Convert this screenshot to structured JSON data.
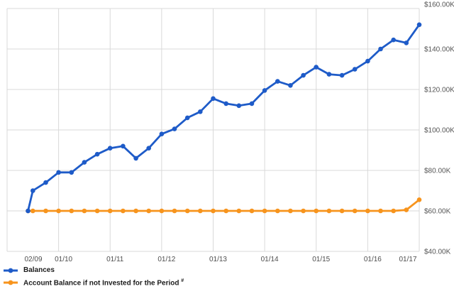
{
  "chart_data": {
    "type": "line",
    "title": "",
    "x": [
      "02/09",
      "07/09",
      "10/09",
      "01/10",
      "04/10",
      "07/10",
      "10/10",
      "01/11",
      "04/11",
      "07/11",
      "10/11",
      "01/12",
      "04/12",
      "07/12",
      "10/12",
      "01/13",
      "04/13",
      "07/13",
      "10/13",
      "01/14",
      "04/14",
      "07/14",
      "10/14",
      "01/15",
      "04/15",
      "07/15",
      "10/15",
      "01/16",
      "04/16",
      "07/16",
      "10/16",
      "01/17"
    ],
    "series": [
      {
        "name": "Balances",
        "color": "#1e5bc8",
        "values": [
          60,
          70,
          74,
          79,
          79,
          84,
          88,
          91,
          92,
          86,
          91,
          98,
          100.5,
          106,
          109,
          115.5,
          113,
          112,
          113,
          119.5,
          124,
          122,
          127,
          131,
          127.5,
          127,
          130,
          134,
          140,
          144.5,
          143,
          152
        ]
      },
      {
        "name": "Account Balance if not Invested for the Period",
        "color": "#f7941d",
        "values": [
          60,
          60,
          60,
          60,
          60,
          60,
          60,
          60,
          60,
          60,
          60,
          60,
          60,
          60,
          60,
          60,
          60,
          60,
          60,
          60,
          60,
          60,
          60,
          60,
          60,
          60,
          60,
          60,
          60,
          60,
          60.5,
          65.5
        ]
      }
    ],
    "x_tick_labels": [
      "02/09",
      "01/10",
      "01/11",
      "01/12",
      "01/13",
      "01/14",
      "01/15",
      "01/16",
      "01/17"
    ],
    "y_tick_labels": [
      "$40.00K",
      "$60.00K",
      "$80.00K",
      "$100.00K",
      "$120.00K",
      "$140.00K",
      "$160.00K"
    ],
    "ylim": [
      40,
      160
    ],
    "y_step": 20,
    "unit": "USD thousands",
    "grid": true,
    "legend_position": "bottom-left",
    "grid_color": "#d9d9d9",
    "background_color": "#ffffff"
  },
  "legend": {
    "items": [
      {
        "label": "Balances",
        "suffix": "",
        "color": "#1e5bc8"
      },
      {
        "label": "Account Balance if not Invested for the Period",
        "suffix": "#",
        "color": "#f7941d"
      }
    ]
  }
}
